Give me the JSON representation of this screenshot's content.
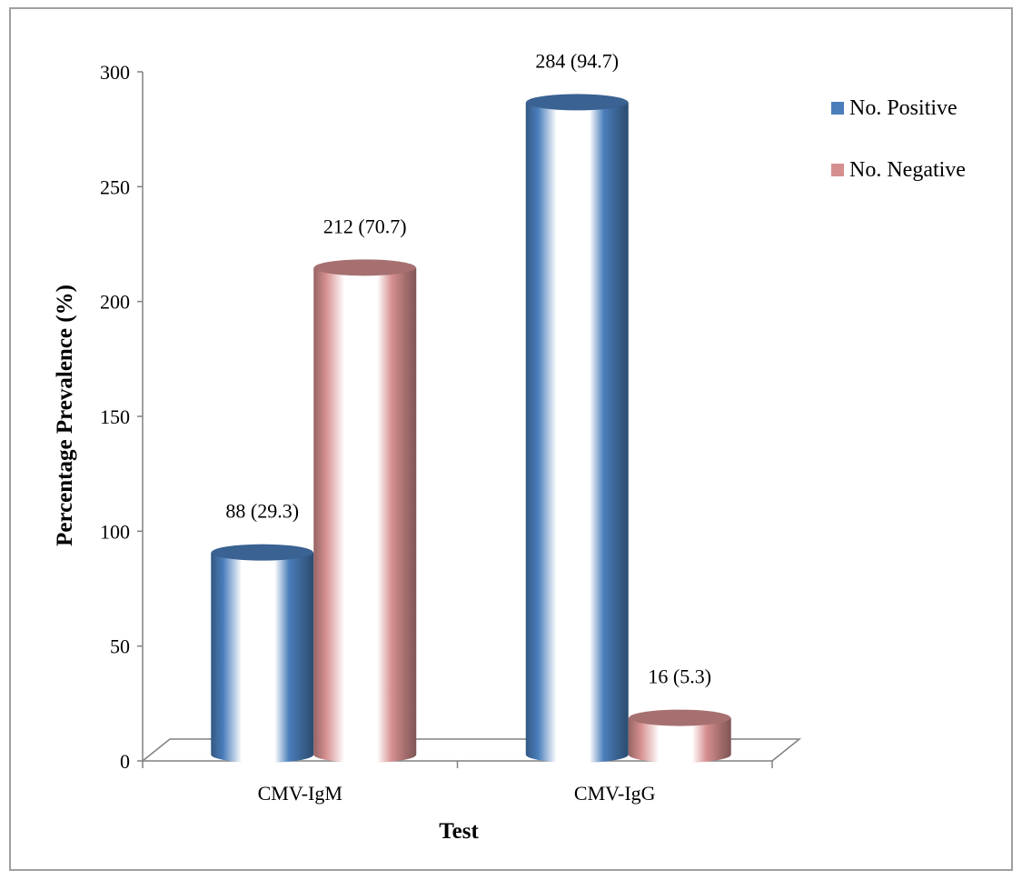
{
  "chart_data": {
    "type": "bar",
    "style": "3d-cylinder",
    "title": "",
    "xlabel": "Test",
    "ylabel": "Percentage Prevalence (%)",
    "categories": [
      "CMV-IgM",
      "CMV-IgG"
    ],
    "series": [
      {
        "name": "No. Positive",
        "color": "#4a7ebb",
        "values": [
          88,
          284
        ],
        "labels": [
          "88 (29.3)",
          "284 (94.7)"
        ]
      },
      {
        "name": "No. Negative",
        "color": "#d68f8f",
        "values": [
          212,
          16
        ],
        "labels": [
          "212 (70.7)",
          "16 (5.3)"
        ]
      }
    ],
    "ylim": [
      0,
      300
    ],
    "yticks": [
      "0",
      "50",
      "100",
      "150",
      "200",
      "250",
      "300"
    ],
    "grid": false,
    "legend_position": "right"
  }
}
